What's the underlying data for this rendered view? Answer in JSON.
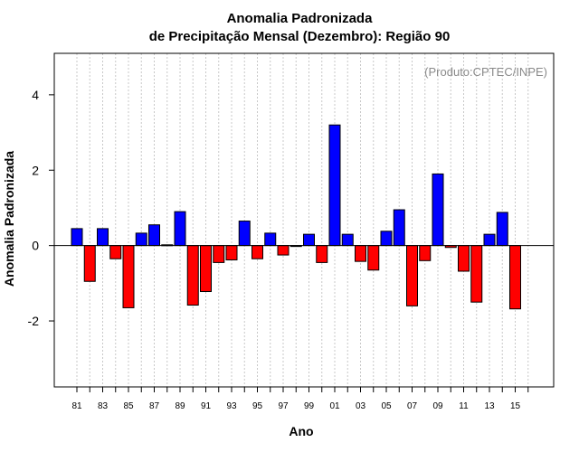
{
  "chart_data": {
    "type": "bar",
    "title_lines": [
      "Anomalia Padronizada",
      "de Precipitação Mensal (Dezembro): Região 90"
    ],
    "xlabel": "Ano",
    "ylabel": "Anomalia Padronizada",
    "annotation": "(Produto:CPTEC/INPE)",
    "categories": [
      "81",
      "82",
      "83",
      "84",
      "85",
      "86",
      "87",
      "88",
      "89",
      "90",
      "91",
      "92",
      "93",
      "94",
      "95",
      "96",
      "97",
      "98",
      "99",
      "00",
      "01",
      "02",
      "03",
      "04",
      "05",
      "06",
      "07",
      "08",
      "09",
      "10",
      "11",
      "12",
      "13",
      "14",
      "15"
    ],
    "x_tick_labels": [
      "81",
      "83",
      "85",
      "87",
      "89",
      "91",
      "93",
      "95",
      "97",
      "99",
      "01",
      "03",
      "05",
      "07",
      "09",
      "11",
      "13",
      "15"
    ],
    "values": [
      0.45,
      -0.95,
      0.45,
      -0.35,
      -1.65,
      0.33,
      0.55,
      0.02,
      0.9,
      -1.58,
      -1.22,
      -0.45,
      -0.38,
      0.65,
      -0.35,
      0.33,
      -0.25,
      -0.02,
      0.3,
      -0.45,
      3.2,
      0.3,
      -0.42,
      -0.65,
      0.38,
      0.95,
      -1.6,
      -0.4,
      1.9,
      -0.05,
      -0.68,
      -1.5,
      0.3,
      0.88,
      -1.68
    ],
    "ylim": [
      -3.75,
      5.1
    ],
    "y_ticks": [
      -2,
      0,
      2,
      4
    ],
    "y_tick_labels": [
      "-2",
      "0",
      "2",
      "4"
    ],
    "grid": "vertical dotted",
    "colors": {
      "positive": "#0000ff",
      "negative": "#ff0000",
      "grid": "#c8c8c8",
      "note": "#8a8a8a"
    }
  }
}
